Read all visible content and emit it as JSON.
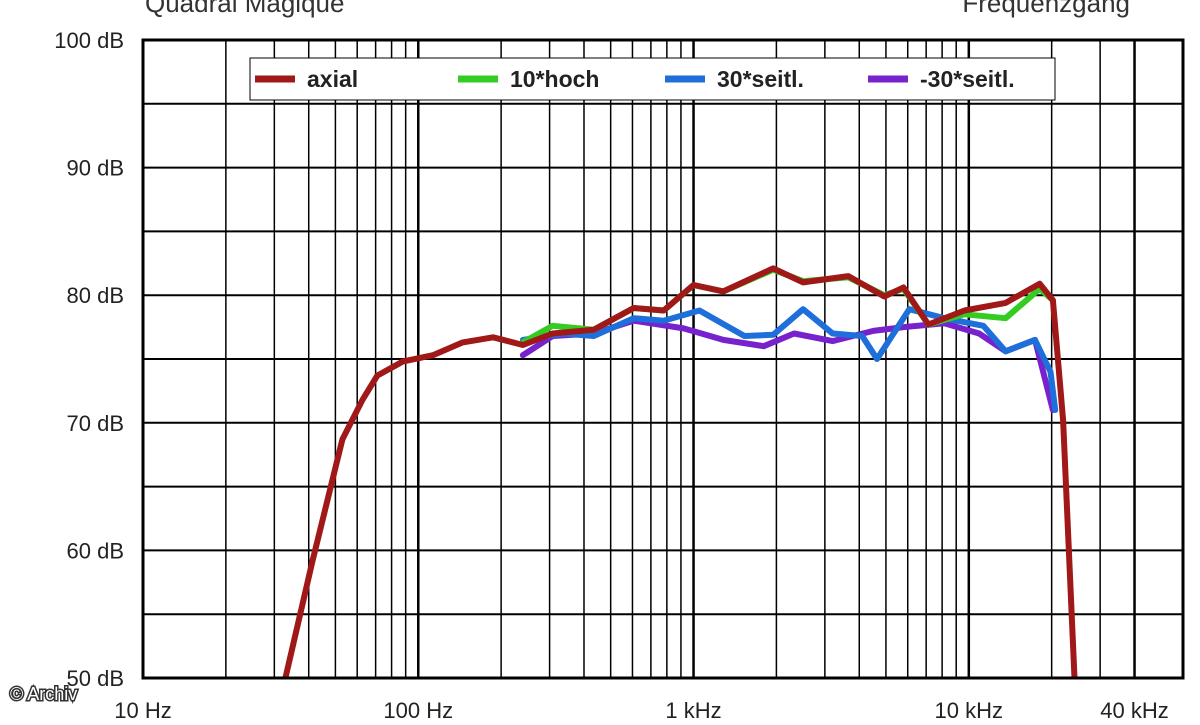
{
  "chart_data": {
    "type": "line",
    "title": "Quadral Magique",
    "subtitle": "Frequenzgang",
    "credit": "© Archiv",
    "log_x": true,
    "grid": true,
    "xlim": [
      10,
      60000
    ],
    "ylim": [
      50,
      100
    ],
    "xticks": [
      {
        "value": 10,
        "label": "10 Hz"
      },
      {
        "value": 100,
        "label": "100 Hz"
      },
      {
        "value": 1000,
        "label": "1 kHz"
      },
      {
        "value": 10000,
        "label": "10 kHz"
      },
      {
        "value": 40000,
        "label": "40 kHz"
      }
    ],
    "x_minor_ticks": [
      20,
      30,
      40,
      50,
      60,
      70,
      80,
      90,
      200,
      300,
      400,
      500,
      600,
      700,
      800,
      900,
      2000,
      3000,
      4000,
      5000,
      6000,
      7000,
      8000,
      9000,
      20000,
      30000
    ],
    "yticks": [
      {
        "value": 50,
        "label": "50 dB"
      },
      {
        "value": 60,
        "label": "60 dB"
      },
      {
        "value": 70,
        "label": "70 dB"
      },
      {
        "value": 80,
        "label": "80 dB"
      },
      {
        "value": 90,
        "label": "90 dB"
      },
      {
        "value": 100,
        "label": "100 dB"
      }
    ],
    "y_minor_ticks": [
      55,
      65,
      75,
      85,
      95
    ],
    "series": [
      {
        "name": "axial",
        "color": "#a01818",
        "x": [
          32.9,
          41.3,
          53,
          62.7,
          71,
          87.7,
          113,
          145,
          187,
          240,
          308,
          434,
          606,
          779,
          1000,
          1284,
          1948,
          2500,
          3650,
          4930,
          5790,
          7130,
          9650,
          13600,
          18100,
          20200,
          22000,
          24200
        ],
        "values": [
          50,
          59.2,
          68.7,
          71.8,
          73.7,
          74.8,
          75.3,
          76.3,
          76.7,
          76.1,
          77.0,
          77.3,
          79.0,
          78.8,
          80.8,
          80.3,
          82.1,
          81.0,
          81.5,
          79.9,
          80.6,
          77.7,
          78.8,
          79.4,
          80.9,
          79.6,
          70.2,
          50
        ]
      },
      {
        "name": "10*hoch",
        "color": "#33cc22",
        "x": [
          240,
          308,
          434,
          606,
          779,
          1000,
          1284,
          1948,
          2500,
          3650,
          4930,
          5790,
          7130,
          9650,
          13600,
          18100,
          20200
        ],
        "values": [
          76.3,
          77.6,
          77.3,
          79.0,
          78.8,
          80.8,
          80.3,
          82.0,
          81.1,
          81.4,
          80.0,
          80.5,
          77.7,
          78.5,
          78.2,
          80.5,
          79.6
        ]
      },
      {
        "name": "30*seitl.",
        "color": "#1e6fd9",
        "x": [
          240,
          334,
          434,
          606,
          779,
          1050,
          1530,
          1948,
          2500,
          3200,
          4100,
          4640,
          6080,
          8150,
          11300,
          13600,
          17400,
          19800,
          20600
        ],
        "values": [
          76.5,
          77.0,
          76.8,
          78.2,
          78.0,
          78.8,
          76.8,
          76.9,
          78.9,
          77.0,
          76.8,
          75.0,
          78.9,
          78.2,
          77.6,
          75.6,
          76.5,
          74,
          71
        ]
      },
      {
        "name": "-30*seitl.",
        "color": "#7722cc",
        "x": [
          240,
          308,
          434,
          606,
          921,
          1284,
          1800,
          2320,
          3200,
          4500,
          5790,
          8150,
          10900,
          13600,
          17400,
          20200
        ],
        "values": [
          75.3,
          76.8,
          77.0,
          78.0,
          77.4,
          76.5,
          76.0,
          77.0,
          76.4,
          77.2,
          77.5,
          77.8,
          77.0,
          75.6,
          76.5,
          71
        ]
      }
    ]
  }
}
